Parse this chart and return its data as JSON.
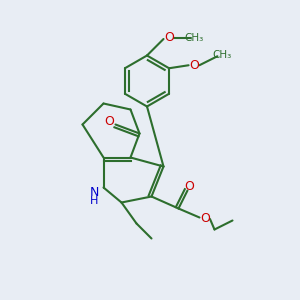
{
  "bg_color": "#e8edf4",
  "bond_color": "#2d6e2d",
  "bond_width": 1.5,
  "atom_colors": {
    "O": "#cc0000",
    "N": "#0000cc",
    "C": "#2d6e2d",
    "H": "#2d6e2d"
  },
  "font_size_atom": 9,
  "font_size_small": 7.5
}
